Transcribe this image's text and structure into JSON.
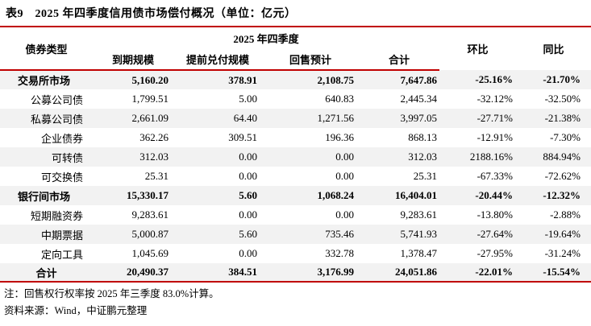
{
  "title": "表9　2025 年四季度信用债市场偿付概况（单位：亿元）",
  "colors": {
    "accent_red": "#c00000",
    "row_stripe": "#f2f2f2",
    "text": "#000000",
    "background": "#ffffff"
  },
  "table": {
    "headers": {
      "bond_type": "债券类型",
      "quarter_group": "2025 年四季度",
      "maturity": "到期规模",
      "early_redemption": "提前兑付规模",
      "put_estimate": "回售预计",
      "total": "合计",
      "qoq": "环比",
      "yoy": "同比"
    },
    "rows": [
      {
        "label": "交易所市场",
        "level": "group",
        "values": [
          "5,160.20",
          "378.91",
          "2,108.75",
          "7,647.86",
          "-25.16%",
          "-21.70%"
        ]
      },
      {
        "label": "公募公司债",
        "level": "sub",
        "values": [
          "1,799.51",
          "5.00",
          "640.83",
          "2,445.34",
          "-32.12%",
          "-32.50%"
        ]
      },
      {
        "label": "私募公司债",
        "level": "sub",
        "values": [
          "2,661.09",
          "64.40",
          "1,271.56",
          "3,997.05",
          "-27.71%",
          "-21.38%"
        ]
      },
      {
        "label": "企业债券",
        "level": "sub",
        "values": [
          "362.26",
          "309.51",
          "196.36",
          "868.13",
          "-12.91%",
          "-7.30%"
        ]
      },
      {
        "label": "可转债",
        "level": "sub",
        "values": [
          "312.03",
          "0.00",
          "0.00",
          "312.03",
          "2188.16%",
          "884.94%"
        ]
      },
      {
        "label": "可交换债",
        "level": "sub",
        "values": [
          "25.31",
          "0.00",
          "0.00",
          "25.31",
          "-67.33%",
          "-72.62%"
        ]
      },
      {
        "label": "银行间市场",
        "level": "group",
        "values": [
          "15,330.17",
          "5.60",
          "1,068.24",
          "16,404.01",
          "-20.44%",
          "-12.32%"
        ]
      },
      {
        "label": "短期融资券",
        "level": "sub",
        "values": [
          "9,283.61",
          "0.00",
          "0.00",
          "9,283.61",
          "-13.80%",
          "-2.88%"
        ]
      },
      {
        "label": "中期票据",
        "level": "sub",
        "values": [
          "5,000.87",
          "5.60",
          "735.46",
          "5,741.93",
          "-27.64%",
          "-19.64%"
        ]
      },
      {
        "label": "定向工具",
        "level": "sub",
        "values": [
          "1,045.69",
          "0.00",
          "332.78",
          "1,378.47",
          "-27.95%",
          "-31.24%"
        ]
      },
      {
        "label": "合计",
        "level": "total",
        "values": [
          "20,490.37",
          "384.51",
          "3,176.99",
          "24,051.86",
          "-22.01%",
          "-15.54%"
        ]
      }
    ]
  },
  "footnotes": {
    "note": "注：回售权行权率按 2025 年三季度 83.0%计算。",
    "source": "资料来源：Wind，中证鹏元整理"
  }
}
